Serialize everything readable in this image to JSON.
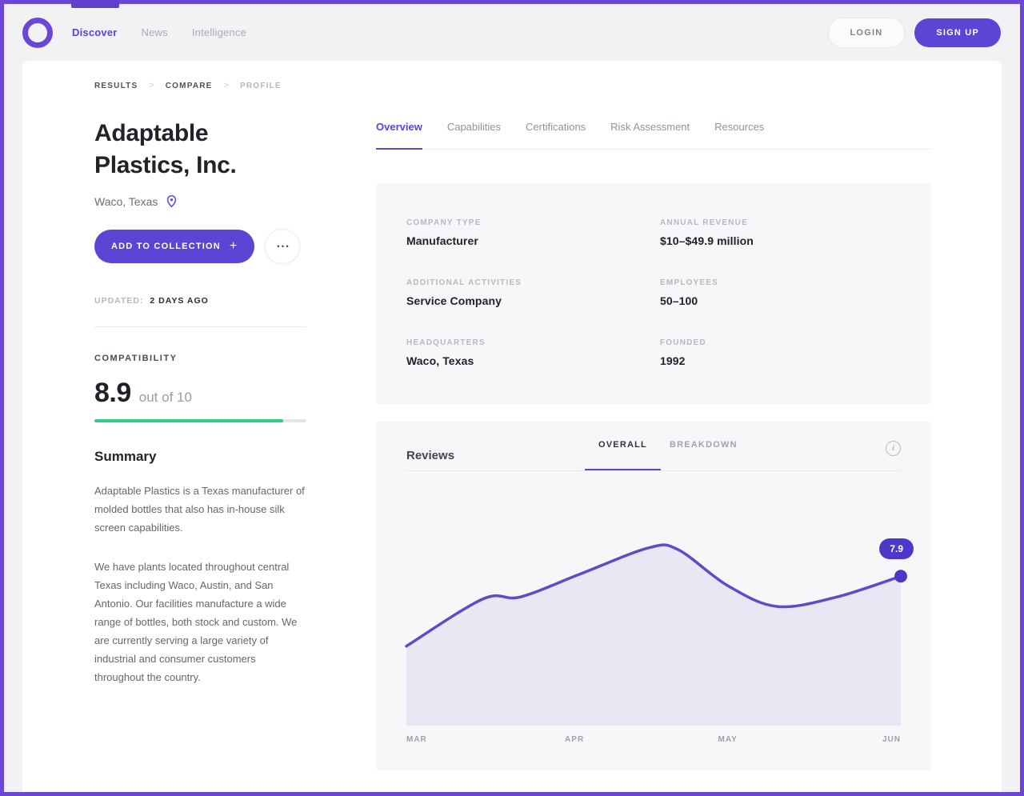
{
  "icons": {
    "more": "•••",
    "plus": "+",
    "breadcrumb_separator": ">",
    "info": "i"
  },
  "colors": {
    "primary": "#5C44D4",
    "frame": "#6C47D6",
    "chart_line": "#5A4DC8",
    "chart_fill": "#E9E7F3",
    "score_bar_green": "#2ECB8B",
    "badge": "#4C39C7"
  },
  "header": {
    "nav": [
      {
        "label": "Discover",
        "active": true
      },
      {
        "label": "News",
        "active": false
      },
      {
        "label": "Intelligence",
        "active": false
      }
    ],
    "login_label": "LOGIN",
    "signup_label": "SIGN UP"
  },
  "breadcrumb": [
    "RESULTS",
    "COMPARE",
    "PROFILE"
  ],
  "profile": {
    "name": "Adaptable Plastics, Inc.",
    "location": "Waco, Texas",
    "add_to_collection_label": "ADD TO COLLECTION",
    "updated_label": "UPDATED:",
    "updated_value": "2 DAYS AGO",
    "compatibility_label": "COMPATIBILITY",
    "score": "8.9",
    "score_suffix": "out of 10",
    "score_percent": 89,
    "summary_title": "Summary",
    "summary_p1": "Adaptable Plastics is a Texas manufacturer of molded bottles that also has in-house silk screen capabilities.",
    "summary_p2": "We have plants located throughout central Texas including Waco, Austin, and San Antonio. Our facilities manufacture a wide range of bottles, both stock and custom. We are currently serving a large variety of industrial and consumer customers throughout the country."
  },
  "tabs": [
    {
      "label": "Overview",
      "active": true
    },
    {
      "label": "Capabilities",
      "active": false
    },
    {
      "label": "Certifications",
      "active": false
    },
    {
      "label": "Risk Assessment",
      "active": false
    },
    {
      "label": "Resources",
      "active": false
    }
  ],
  "details": {
    "fields": [
      {
        "label": "COMPANY TYPE",
        "value": "Manufacturer"
      },
      {
        "label": "ANNUAL REVENUE",
        "value": "$10–$49.9 million"
      },
      {
        "label": "ADDITIONAL ACTIVITIES",
        "value": "Service Company"
      },
      {
        "label": "EMPLOYEES",
        "value": "50–100"
      },
      {
        "label": "HEADQUARTERS",
        "value": "Waco, Texas"
      },
      {
        "label": "FOUNDED",
        "value": "1992"
      }
    ]
  },
  "reviews": {
    "title": "Reviews",
    "tabs": [
      {
        "label": "OVERALL",
        "active": true
      },
      {
        "label": "BREAKDOWN",
        "active": false
      }
    ],
    "chart_data": {
      "type": "area",
      "x_labels": [
        "MAR",
        "APR",
        "MAY",
        "JUN"
      ],
      "y_range": [
        0,
        10
      ],
      "render_max": 11,
      "grid": false,
      "legend": false,
      "series": [
        {
          "name": "OVERALL",
          "points": [
            [
              0.0,
              4.2
            ],
            [
              0.155,
              6.7
            ],
            [
              0.23,
              6.8
            ],
            [
              0.35,
              8.0
            ],
            [
              0.49,
              9.4
            ],
            [
              0.55,
              9.3
            ],
            [
              0.65,
              7.4
            ],
            [
              0.75,
              6.3
            ],
            [
              0.87,
              6.8
            ],
            [
              1.0,
              7.9
            ]
          ]
        }
      ],
      "end_value_label": "7.9"
    }
  }
}
